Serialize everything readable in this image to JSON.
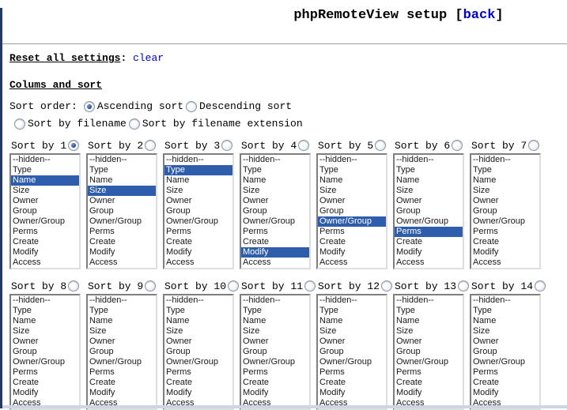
{
  "header": {
    "title": "phpRemoteView setup",
    "back_prefix": "[",
    "back_link_label": "back",
    "back_suffix": "]"
  },
  "reset": {
    "label": "Reset all settings",
    "colon": ":",
    "link_label": "clear"
  },
  "sections": {
    "columns_heading": "Colums and sort"
  },
  "sort_order": {
    "label": "Sort order:",
    "options": [
      {
        "label": "Ascending sort",
        "checked": true
      },
      {
        "label": "Descending sort",
        "checked": false
      }
    ]
  },
  "filename_sort": {
    "options": [
      {
        "label": "Sort by filename",
        "checked": false
      },
      {
        "label": "Sort by filename extension",
        "checked": false
      }
    ]
  },
  "list_options": [
    "--hidden--",
    "Type",
    "Name",
    "Size",
    "Owner",
    "Group",
    "Owner/Group",
    "Perms",
    "Create",
    "Modify",
    "Access"
  ],
  "sort_boxes": [
    {
      "label": "Sort by 1",
      "radio_checked": true,
      "selected": "Name"
    },
    {
      "label": "Sort by 2",
      "radio_checked": false,
      "selected": "Size"
    },
    {
      "label": "Sort by 3",
      "radio_checked": false,
      "selected": "Type"
    },
    {
      "label": "Sort by 4",
      "radio_checked": false,
      "selected": "Modify"
    },
    {
      "label": "Sort by 5",
      "radio_checked": false,
      "selected": "Owner/Group"
    },
    {
      "label": "Sort by 6",
      "radio_checked": false,
      "selected": "Perms"
    },
    {
      "label": "Sort by 7",
      "radio_checked": false,
      "selected": null
    },
    {
      "label": "Sort by 8",
      "radio_checked": false,
      "selected": null
    },
    {
      "label": "Sort by 9",
      "radio_checked": false,
      "selected": null
    },
    {
      "label": "Sort by 10",
      "radio_checked": false,
      "selected": null
    },
    {
      "label": "Sort by 11",
      "radio_checked": false,
      "selected": null
    },
    {
      "label": "Sort by 12",
      "radio_checked": false,
      "selected": null
    },
    {
      "label": "Sort by 13",
      "radio_checked": false,
      "selected": null
    },
    {
      "label": "Sort by 14",
      "radio_checked": false,
      "selected": null
    }
  ],
  "colors": {
    "selection_bg": "#2E5DAD",
    "selection_text": "#FFFFFF",
    "link": "#0000CC",
    "page_left_edge": "#1F3B6D",
    "window_bottom_edge": "#CCD6E5"
  }
}
